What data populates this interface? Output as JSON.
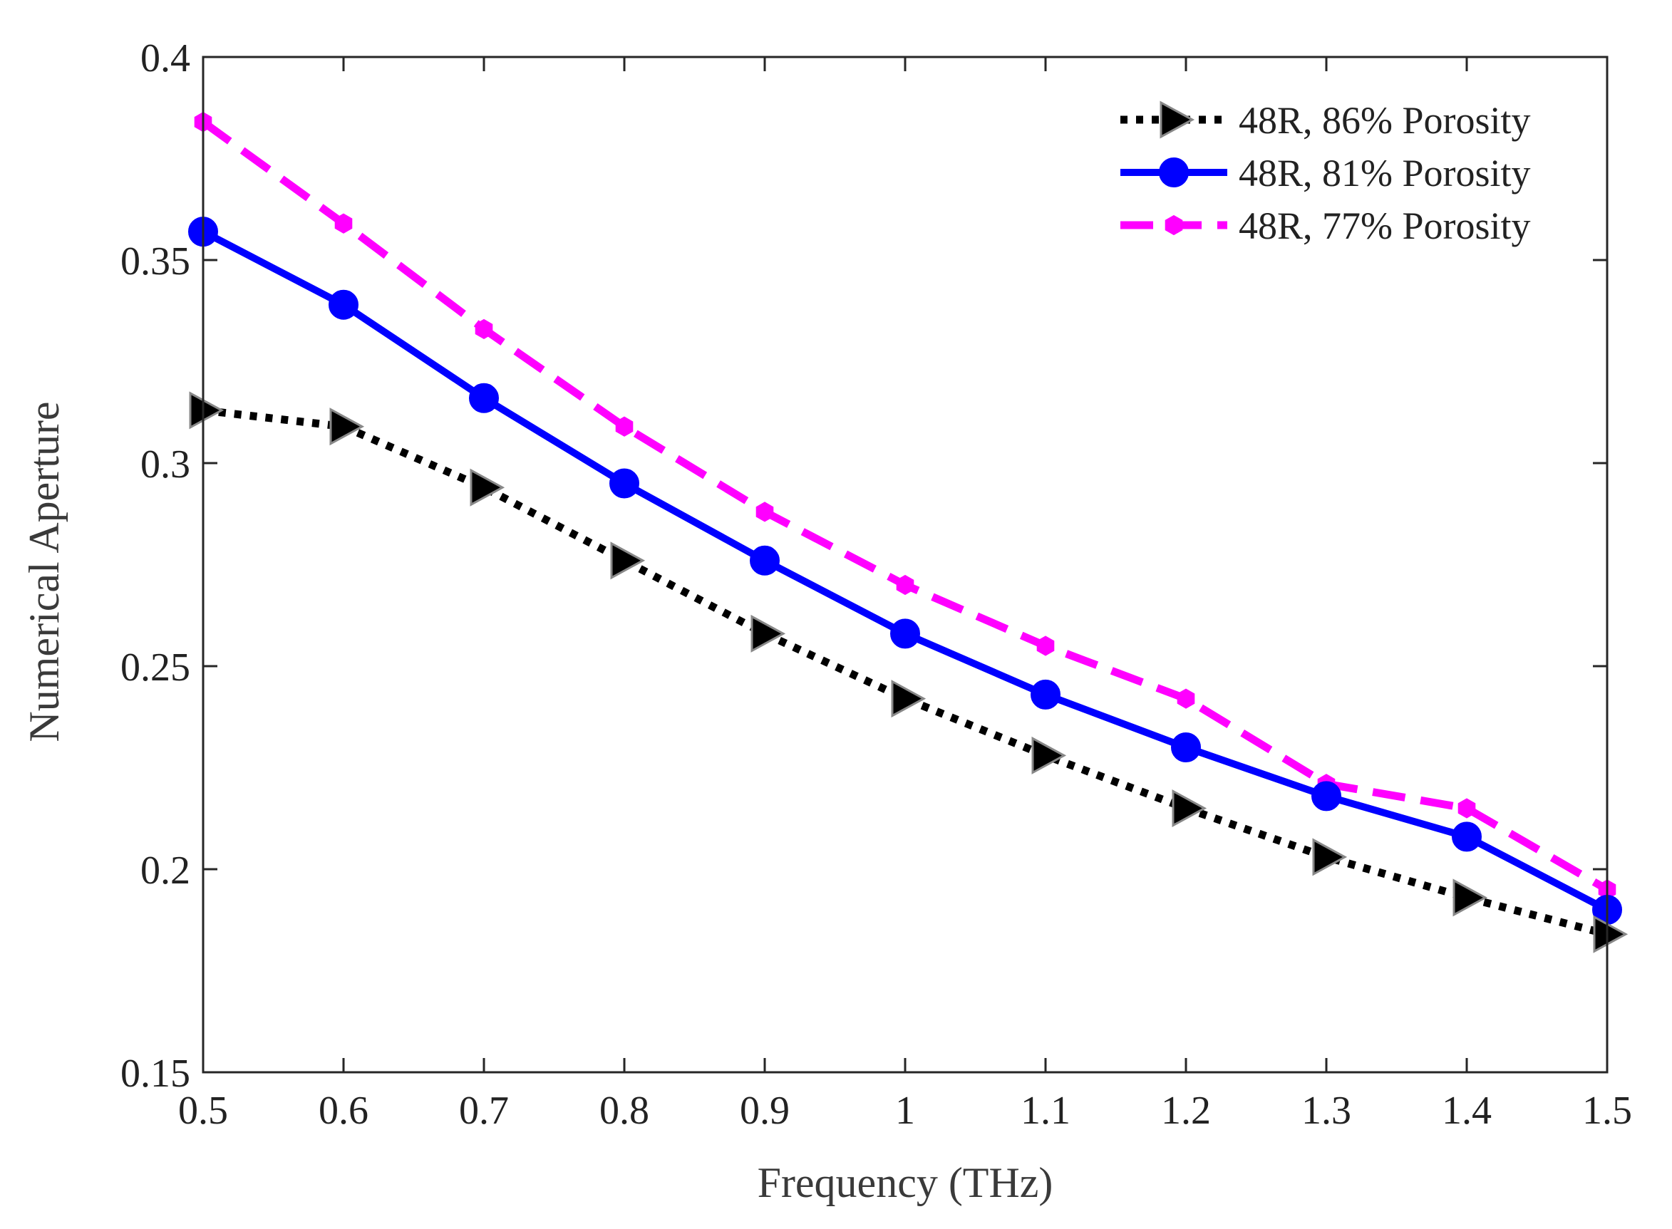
{
  "chart_data": {
    "type": "line",
    "title": "",
    "xlabel": "Frequency (THz)",
    "ylabel": "Numerical Aperture",
    "xlim": [
      0.5,
      1.5
    ],
    "ylim": [
      0.15,
      0.4
    ],
    "xticks": [
      0.5,
      0.6,
      0.7,
      0.8,
      0.9,
      1.0,
      1.1,
      1.2,
      1.3,
      1.4,
      1.5
    ],
    "xtick_labels": [
      "0.5",
      "0.6",
      "0.7",
      "0.8",
      "0.9",
      "1",
      "1.1",
      "1.2",
      "1.3",
      "1.4",
      "1.5"
    ],
    "yticks": [
      0.15,
      0.2,
      0.25,
      0.3,
      0.35,
      0.4
    ],
    "ytick_labels": [
      "0.15",
      "0.2",
      "0.25",
      "0.3",
      "0.35",
      "0.4"
    ],
    "grid": false,
    "legend_position": "top-right",
    "x": [
      0.5,
      0.6,
      0.7,
      0.8,
      0.9,
      1.0,
      1.1,
      1.2,
      1.3,
      1.4,
      1.5
    ],
    "series": [
      {
        "name": "48R, 86% Porosity",
        "color": "#000000",
        "line_style": "dotted",
        "marker": "triangle-right",
        "values": [
          0.313,
          0.309,
          0.294,
          0.276,
          0.258,
          0.242,
          0.228,
          0.215,
          0.203,
          0.193,
          0.184
        ]
      },
      {
        "name": "48R, 81% Porosity",
        "color": "#0000ff",
        "line_style": "solid",
        "marker": "circle",
        "values": [
          0.357,
          0.339,
          0.316,
          0.295,
          0.276,
          0.258,
          0.243,
          0.23,
          0.218,
          0.208,
          0.19
        ]
      },
      {
        "name": "48R, 77% Porosity",
        "color": "#ff00ff",
        "line_style": "dashed",
        "marker": "hexagon",
        "values": [
          0.384,
          0.359,
          0.333,
          0.309,
          0.288,
          0.27,
          0.255,
          0.242,
          0.221,
          0.215,
          0.195
        ]
      }
    ]
  }
}
